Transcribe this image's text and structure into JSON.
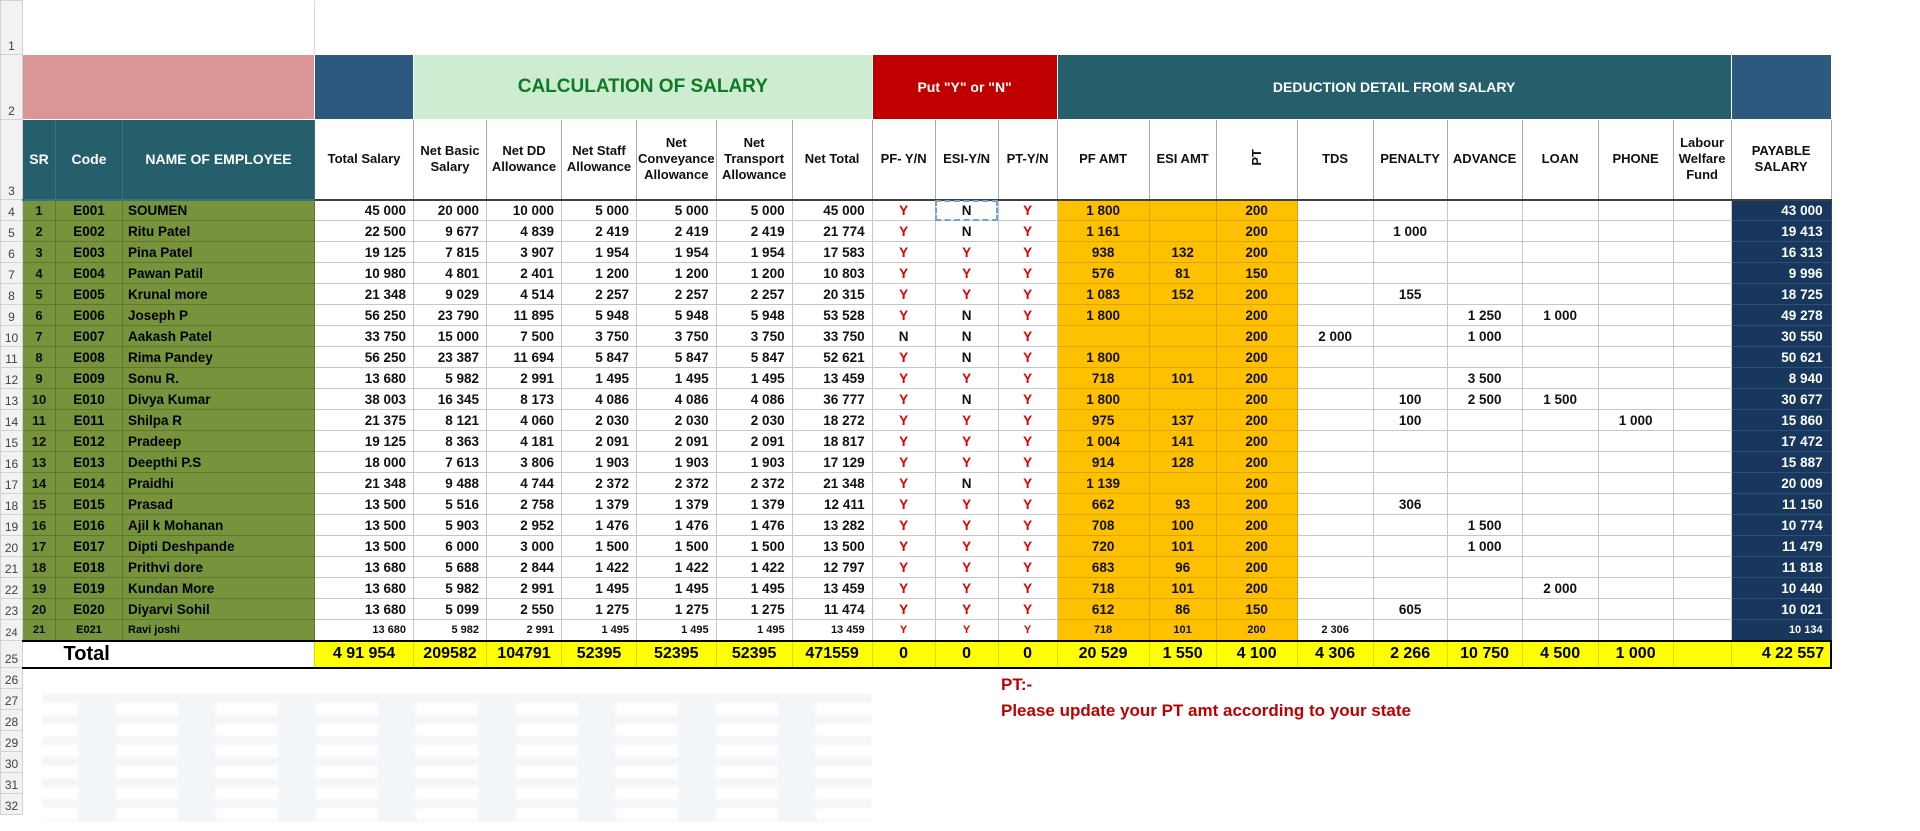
{
  "sheet": {
    "row_numbers": [
      "1",
      "2",
      "3",
      "4",
      "5",
      "6",
      "7",
      "8",
      "9",
      "10",
      "11",
      "12",
      "13",
      "14",
      "15",
      "16",
      "17",
      "18",
      "19",
      "20",
      "21",
      "22",
      "23",
      "24",
      "25",
      "26",
      "27",
      "28",
      "29",
      "30",
      "31",
      "32"
    ]
  },
  "banner": {
    "calculation_title": "CALCULATION OF SALARY",
    "put_yn_title": "Put \"Y\" or \"N\"",
    "deduction_title": "DEDUCTION DETAIL FROM SALARY"
  },
  "columns": [
    "SR",
    "Code",
    "NAME OF EMPLOYEE",
    "Total Salary",
    "Net Basic Salary",
    "Net DD Allowance",
    "Net Staff Allowance",
    "Net Conveyance Allowance",
    "Net Transport Allowance",
    "Net Total",
    "PF- Y/N",
    "ESI-Y/N",
    "PT-Y/N",
    "PF AMT",
    "ESI AMT",
    "PT",
    "TDS",
    "PENALTY",
    "ADVANCE",
    "LOAN",
    "PHONE",
    "Labour Welfare Fund",
    "PAYABLE SALARY"
  ],
  "rows": [
    [
      "1",
      "E001",
      "SOUMEN",
      "45 000",
      "20 000",
      "10 000",
      "5 000",
      "5 000",
      "5 000",
      "45 000",
      "Y",
      "N",
      "Y",
      "1 800",
      "",
      "200",
      "",
      "",
      "",
      "",
      "",
      "",
      "43 000"
    ],
    [
      "2",
      "E002",
      "Ritu Patel",
      "22 500",
      "9 677",
      "4 839",
      "2 419",
      "2 419",
      "2 419",
      "21 774",
      "Y",
      "N",
      "Y",
      "1 161",
      "",
      "200",
      "",
      "1 000",
      "",
      "",
      "",
      "",
      "19 413"
    ],
    [
      "3",
      "E003",
      "Pina Patel",
      "19 125",
      "7 815",
      "3 907",
      "1 954",
      "1 954",
      "1 954",
      "17 583",
      "Y",
      "Y",
      "Y",
      "938",
      "132",
      "200",
      "",
      "",
      "",
      "",
      "",
      "",
      "16 313"
    ],
    [
      "4",
      "E004",
      "Pawan Patil",
      "10 980",
      "4 801",
      "2 401",
      "1 200",
      "1 200",
      "1 200",
      "10 803",
      "Y",
      "Y",
      "Y",
      "576",
      "81",
      "150",
      "",
      "",
      "",
      "",
      "",
      "",
      "9 996"
    ],
    [
      "5",
      "E005",
      "Krunal more",
      "21 348",
      "9 029",
      "4 514",
      "2 257",
      "2 257",
      "2 257",
      "20 315",
      "Y",
      "Y",
      "Y",
      "1 083",
      "152",
      "200",
      "",
      "155",
      "",
      "",
      "",
      "",
      "18 725"
    ],
    [
      "6",
      "E006",
      "Joseph P",
      "56 250",
      "23 790",
      "11 895",
      "5 948",
      "5 948",
      "5 948",
      "53 528",
      "Y",
      "N",
      "Y",
      "1 800",
      "",
      "200",
      "",
      "",
      "1 250",
      "1 000",
      "",
      "",
      "49 278"
    ],
    [
      "7",
      "E007",
      "Aakash Patel",
      "33 750",
      "15 000",
      "7 500",
      "3 750",
      "3 750",
      "3 750",
      "33 750",
      "N",
      "N",
      "Y",
      "",
      "",
      "200",
      "2 000",
      "",
      "1 000",
      "",
      "",
      "",
      "30 550"
    ],
    [
      "8",
      "E008",
      "Rima Pandey",
      "56 250",
      "23 387",
      "11 694",
      "5 847",
      "5 847",
      "5 847",
      "52 621",
      "Y",
      "N",
      "Y",
      "1 800",
      "",
      "200",
      "",
      "",
      "",
      "",
      "",
      "",
      "50 621"
    ],
    [
      "9",
      "E009",
      "Sonu R.",
      "13 680",
      "5 982",
      "2 991",
      "1 495",
      "1 495",
      "1 495",
      "13 459",
      "Y",
      "Y",
      "Y",
      "718",
      "101",
      "200",
      "",
      "",
      "3 500",
      "",
      "",
      "",
      "8 940"
    ],
    [
      "10",
      "E010",
      "Divya Kumar",
      "38 003",
      "16 345",
      "8 173",
      "4 086",
      "4 086",
      "4 086",
      "36 777",
      "Y",
      "N",
      "Y",
      "1 800",
      "",
      "200",
      "",
      "100",
      "2 500",
      "1 500",
      "",
      "",
      "30 677"
    ],
    [
      "11",
      "E011",
      "Shilpa R",
      "21 375",
      "8 121",
      "4 060",
      "2 030",
      "2 030",
      "2 030",
      "18 272",
      "Y",
      "Y",
      "Y",
      "975",
      "137",
      "200",
      "",
      "100",
      "",
      "",
      "1 000",
      "",
      "15 860"
    ],
    [
      "12",
      "E012",
      "Pradeep",
      "19 125",
      "8 363",
      "4 181",
      "2 091",
      "2 091",
      "2 091",
      "18 817",
      "Y",
      "Y",
      "Y",
      "1 004",
      "141",
      "200",
      "",
      "",
      "",
      "",
      "",
      "",
      "17 472"
    ],
    [
      "13",
      "E013",
      "Deepthi P.S",
      "18 000",
      "7 613",
      "3 806",
      "1 903",
      "1 903",
      "1 903",
      "17 129",
      "Y",
      "Y",
      "Y",
      "914",
      "128",
      "200",
      "",
      "",
      "",
      "",
      "",
      "",
      "15 887"
    ],
    [
      "14",
      "E014",
      "Praidhi",
      "21 348",
      "9 488",
      "4 744",
      "2 372",
      "2 372",
      "2 372",
      "21 348",
      "Y",
      "N",
      "Y",
      "1 139",
      "",
      "200",
      "",
      "",
      "",
      "",
      "",
      "",
      "20 009"
    ],
    [
      "15",
      "E015",
      "Prasad",
      "13 500",
      "5 516",
      "2 758",
      "1 379",
      "1 379",
      "1 379",
      "12 411",
      "Y",
      "Y",
      "Y",
      "662",
      "93",
      "200",
      "",
      "306",
      "",
      "",
      "",
      "",
      "11 150"
    ],
    [
      "16",
      "E016",
      "Ajil k Mohanan",
      "13 500",
      "5 903",
      "2 952",
      "1 476",
      "1 476",
      "1 476",
      "13 282",
      "Y",
      "Y",
      "Y",
      "708",
      "100",
      "200",
      "",
      "",
      "1 500",
      "",
      "",
      "",
      "10 774"
    ],
    [
      "17",
      "E017",
      "Dipti Deshpande",
      "13 500",
      "6 000",
      "3 000",
      "1 500",
      "1 500",
      "1 500",
      "13 500",
      "Y",
      "Y",
      "Y",
      "720",
      "101",
      "200",
      "",
      "",
      "1 000",
      "",
      "",
      "",
      "11 479"
    ],
    [
      "18",
      "E018",
      "Prithvi dore",
      "13 680",
      "5 688",
      "2 844",
      "1 422",
      "1 422",
      "1 422",
      "12 797",
      "Y",
      "Y",
      "Y",
      "683",
      "96",
      "200",
      "",
      "",
      "",
      "",
      "",
      "",
      "11 818"
    ],
    [
      "19",
      "E019",
      "Kundan More",
      "13 680",
      "5 982",
      "2 991",
      "1 495",
      "1 495",
      "1 495",
      "13 459",
      "Y",
      "Y",
      "Y",
      "718",
      "101",
      "200",
      "",
      "",
      "",
      "2 000",
      "",
      "",
      "10 440"
    ],
    [
      "20",
      "E020",
      "Diyarvi Sohil",
      "13 680",
      "5 099",
      "2 550",
      "1 275",
      "1 275",
      "1 275",
      "11 474",
      "Y",
      "Y",
      "Y",
      "612",
      "86",
      "150",
      "",
      "605",
      "",
      "",
      "",
      "",
      "10 021"
    ],
    [
      "21",
      "E021",
      "Ravi joshi",
      "13 680",
      "5 982",
      "2 991",
      "1 495",
      "1 495",
      "1 495",
      "13 459",
      "Y",
      "Y",
      "Y",
      "718",
      "101",
      "200",
      "2 306",
      "",
      "",
      "",
      "",
      "",
      "10 134"
    ]
  ],
  "total": {
    "label": "Total",
    "values": [
      "4 91 954",
      "209582",
      "104791",
      "52395",
      "52395",
      "52395",
      "471559",
      "0",
      "0",
      "0",
      "20 529",
      "1 550",
      "4 100",
      "4 306",
      "2 266",
      "10 750",
      "4 500",
      "1 000",
      "",
      "4 22 557"
    ]
  },
  "note": {
    "line1": "PT:-",
    "line2": "Please update your PT amt according to your state"
  },
  "colors": {
    "banner_pink": "#D99694",
    "banner_blue": "#2D5980",
    "banner_green_bg": "#CDEDD3",
    "banner_green_text": "#0E7A22",
    "banner_red": "#C00000",
    "banner_teal": "#265F6C",
    "olive": "#77933C",
    "orange": "#FFC000",
    "payable_navy": "#17375D",
    "total_yellow": "#FFFF00",
    "yn_red": "#E00000"
  }
}
